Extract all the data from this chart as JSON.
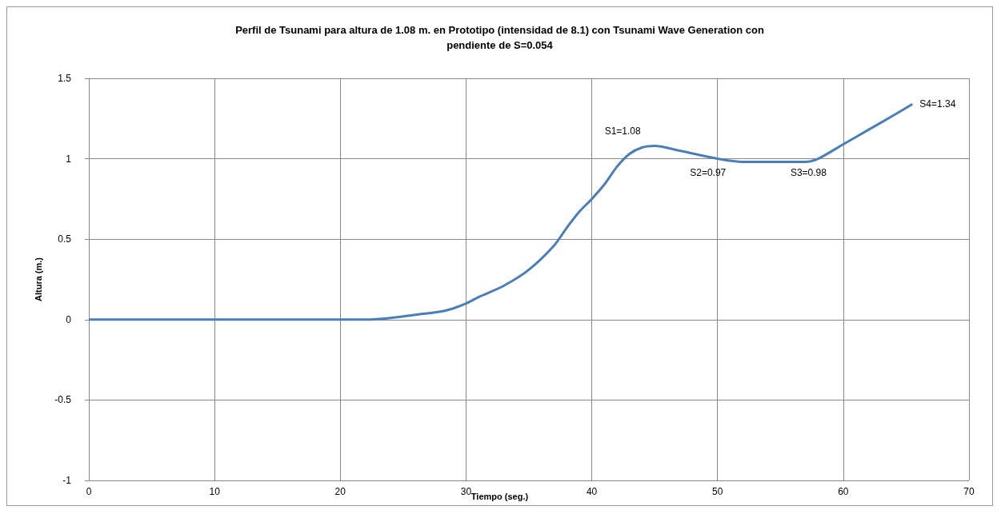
{
  "chart_data": {
    "type": "line",
    "title": "Perfil de Tsunami para altura de 1.08 m. en Prototipo (intensidad de 8.1) con Tsunami Wave Generation con\npendiente de S=0.054",
    "ylabel": "Altura (m.)",
    "x": [
      0,
      4,
      10,
      16,
      20,
      22,
      24,
      26,
      28,
      29,
      30,
      31,
      33,
      35,
      37,
      38,
      39,
      40,
      41,
      42,
      43,
      44,
      45,
      47,
      50,
      52,
      55,
      57,
      58,
      60,
      62,
      64,
      65.5
    ],
    "series": [
      {
        "color": "#4a7ebb",
        "values": [
          0,
          0,
          0,
          0,
          0,
          0,
          0.01,
          0.03,
          0.05,
          0.07,
          0.1,
          0.14,
          0.21,
          0.31,
          0.46,
          0.57,
          0.67,
          0.75,
          0.84,
          0.95,
          1.03,
          1.07,
          1.08,
          1.05,
          1.0,
          0.98,
          0.98,
          0.98,
          1.0,
          1.09,
          1.18,
          1.27,
          1.34
        ]
      }
    ],
    "annotations": [
      {
        "text": "S1=1.08",
        "x": 45,
        "y": 1.08
      },
      {
        "text": "S2=0.97",
        "x": 50,
        "y": 1.0
      },
      {
        "text": "S3=0.98",
        "x": 58,
        "y": 1.0
      },
      {
        "text": "S4=1.34",
        "x": 65.5,
        "y": 1.34
      },
      "Tiempo (seg.)"
    ],
    "xlim": [
      0,
      70
    ],
    "xticks": [
      0,
      10,
      20,
      30,
      40,
      50,
      60,
      70
    ],
    "ylim": [
      -1,
      1.5
    ],
    "yticks": [
      -1,
      -0.5,
      0,
      0.5,
      1,
      1.5
    ],
    "grid": true,
    "marker": "none",
    "line_style": "solid"
  }
}
